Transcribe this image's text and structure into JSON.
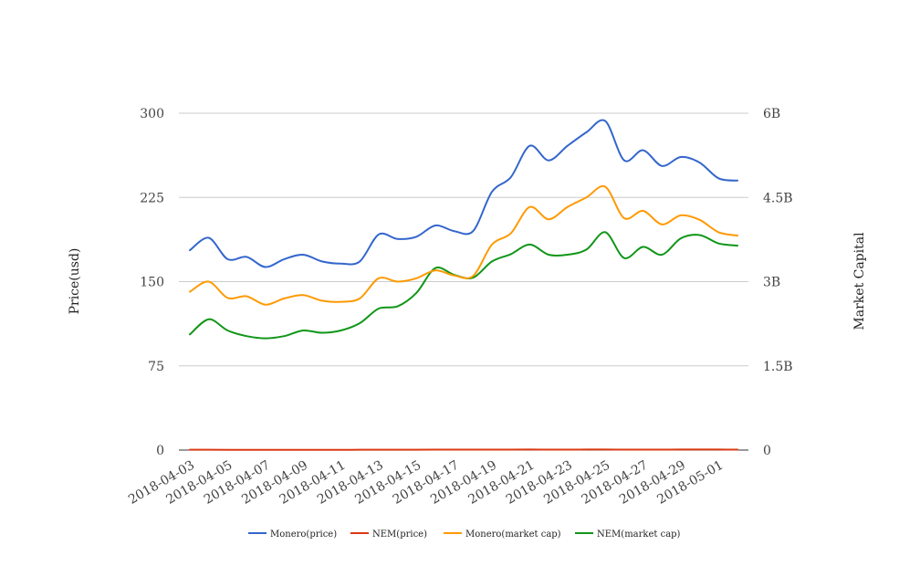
{
  "chart_data": {
    "type": "line",
    "x": [
      "2018-04-03",
      "2018-04-04",
      "2018-04-05",
      "2018-04-06",
      "2018-04-07",
      "2018-04-08",
      "2018-04-09",
      "2018-04-10",
      "2018-04-11",
      "2018-04-12",
      "2018-04-13",
      "2018-04-14",
      "2018-04-15",
      "2018-04-16",
      "2018-04-17",
      "2018-04-18",
      "2018-04-19",
      "2018-04-20",
      "2018-04-21",
      "2018-04-22",
      "2018-04-23",
      "2018-04-24",
      "2018-04-25",
      "2018-04-26",
      "2018-04-27",
      "2018-04-28",
      "2018-04-29",
      "2018-04-30",
      "2018-05-01",
      "2018-05-02"
    ],
    "x_tick_labels": [
      "2018-04-03",
      "2018-04-05",
      "2018-04-07",
      "2018-04-09",
      "2018-04-11",
      "2018-04-13",
      "2018-04-15",
      "2018-04-17",
      "2018-04-19",
      "2018-04-21",
      "2018-04-23",
      "2018-04-25",
      "2018-04-27",
      "2018-04-29",
      "2018-05-01"
    ],
    "ylabel": "Price(usd)",
    "y2label": "Market Capital",
    "ylim": [
      0,
      300
    ],
    "y2lim": [
      0,
      6000000000
    ],
    "y_ticks": [
      "0",
      "75",
      "150",
      "225",
      "300"
    ],
    "y2_ticks": [
      "0",
      "1.5B",
      "3B",
      "4.5B",
      "6B"
    ],
    "grid": true,
    "legend_position": "bottom",
    "series": [
      {
        "name": "Monero(price)",
        "axis": "left",
        "color": "#3366cc",
        "values": [
          178,
          189,
          170,
          172,
          163,
          170,
          174,
          168,
          166,
          168,
          192,
          188,
          190,
          200,
          195,
          195,
          230,
          243,
          271,
          258,
          271,
          283,
          293,
          258,
          267,
          253,
          261,
          256,
          242,
          240
        ]
      },
      {
        "name": "NEM(price)",
        "axis": "left",
        "color": "#dc3912",
        "values": [
          0.3,
          0.32,
          0.28,
          0.27,
          0.26,
          0.27,
          0.28,
          0.27,
          0.28,
          0.29,
          0.33,
          0.33,
          0.36,
          0.4,
          0.39,
          0.38,
          0.42,
          0.44,
          0.47,
          0.44,
          0.44,
          0.45,
          0.47,
          0.42,
          0.44,
          0.43,
          0.46,
          0.46,
          0.45,
          0.44
        ]
      },
      {
        "name": "Monero(market cap)",
        "axis": "right",
        "color": "#ff9900",
        "values": [
          2820000000,
          3000000000,
          2710000000,
          2740000000,
          2590000000,
          2700000000,
          2760000000,
          2660000000,
          2640000000,
          2700000000,
          3060000000,
          3000000000,
          3060000000,
          3200000000,
          3110000000,
          3100000000,
          3660000000,
          3860000000,
          4330000000,
          4110000000,
          4330000000,
          4500000000,
          4690000000,
          4130000000,
          4260000000,
          4020000000,
          4180000000,
          4100000000,
          3880000000,
          3820000000
        ]
      },
      {
        "name": "NEM(market cap)",
        "axis": "right",
        "color": "#109618",
        "values": [
          2060000000,
          2330000000,
          2130000000,
          2030000000,
          1990000000,
          2030000000,
          2130000000,
          2090000000,
          2130000000,
          2260000000,
          2520000000,
          2560000000,
          2800000000,
          3240000000,
          3120000000,
          3070000000,
          3360000000,
          3490000000,
          3660000000,
          3480000000,
          3480000000,
          3570000000,
          3880000000,
          3420000000,
          3620000000,
          3480000000,
          3770000000,
          3830000000,
          3680000000,
          3640000000
        ]
      }
    ]
  }
}
